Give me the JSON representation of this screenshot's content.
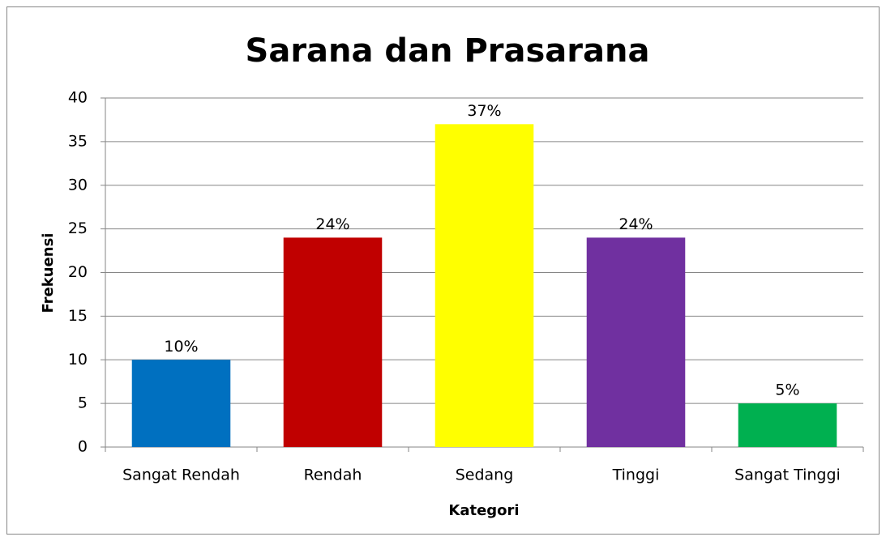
{
  "chart_data": {
    "type": "bar",
    "title": "Sarana dan Prasarana",
    "categories": [
      "Sangat Rendah",
      "Rendah",
      "Sedang",
      "Tinggi",
      "Sangat Tinggi"
    ],
    "values": [
      10,
      24,
      37,
      24,
      5
    ],
    "value_labels": [
      "10%",
      "24%",
      "37%",
      "24%",
      "5%"
    ],
    "colors": [
      "#0070c0",
      "#c00000",
      "#ffff00",
      "#7030a0",
      "#00b050"
    ],
    "xlabel": "Kategori",
    "ylabel": "Frekuensi",
    "ylim": [
      0,
      40
    ],
    "yticks": [
      0,
      5,
      10,
      15,
      20,
      25,
      30,
      35,
      40
    ],
    "grid": true
  }
}
